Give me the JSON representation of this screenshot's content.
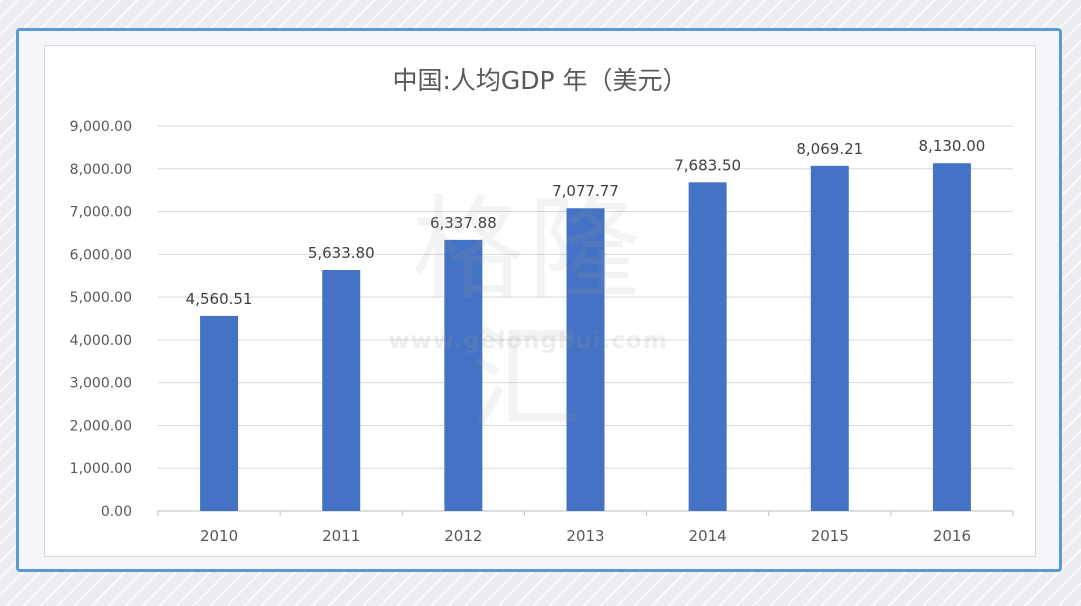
{
  "chart_data": {
    "type": "bar",
    "title": "中国:人均GDP 年（美元）",
    "categories": [
      "2010",
      "2011",
      "2012",
      "2013",
      "2014",
      "2015",
      "2016"
    ],
    "values": [
      4560.51,
      5633.8,
      6337.88,
      7077.77,
      7683.5,
      8069.21,
      8130.0
    ],
    "data_labels": [
      "4,560.51",
      "5,633.80",
      "6,337.88",
      "7,077.77",
      "7,683.50",
      "8,069.21",
      "8,130.00"
    ],
    "y_ticks": [
      0,
      1000,
      2000,
      3000,
      4000,
      5000,
      6000,
      7000,
      8000,
      9000
    ],
    "y_tick_labels": [
      "0.00",
      "1,000.00",
      "2,000.00",
      "3,000.00",
      "4,000.00",
      "5,000.00",
      "6,000.00",
      "7,000.00",
      "8,000.00",
      "9,000.00"
    ],
    "ylim": [
      0,
      9000
    ],
    "grid": true,
    "bar_color": "#4472c4"
  },
  "watermark": {
    "text": "格隆汇",
    "url": "www.gelonghui.com"
  }
}
